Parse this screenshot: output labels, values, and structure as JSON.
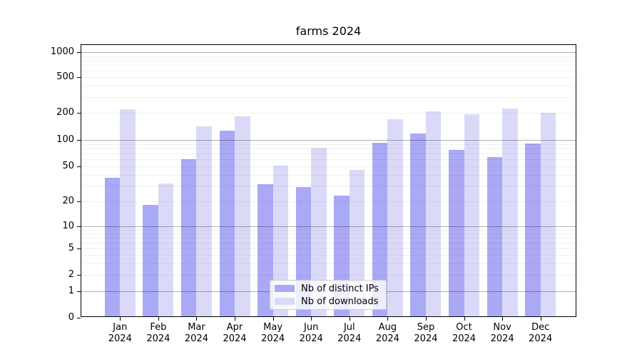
{
  "title": "farms 2024",
  "legend": {
    "items": [
      {
        "label": "Nb of distinct IPs",
        "color": "#a9a9f6"
      },
      {
        "label": "Nb of downloads",
        "color": "#dadaf8"
      }
    ]
  },
  "y_axis": {
    "tick_labels": [
      "0",
      "1",
      "2",
      "5",
      "10",
      "20",
      "50",
      "100",
      "200",
      "500",
      "1000"
    ]
  },
  "x_axis": {
    "months": [
      "Jan",
      "Feb",
      "Mar",
      "Apr",
      "May",
      "Jun",
      "Jul",
      "Aug",
      "Sep",
      "Oct",
      "Nov",
      "Dec"
    ],
    "year": "2024"
  },
  "chart_data": {
    "type": "bar",
    "title": "farms 2024",
    "categories": [
      "Jan 2024",
      "Feb 2024",
      "Mar 2024",
      "Apr 2024",
      "May 2024",
      "Jun 2024",
      "Jul 2024",
      "Aug 2024",
      "Sep 2024",
      "Oct 2024",
      "Nov 2024",
      "Dec 2024"
    ],
    "series": [
      {
        "name": "Nb of distinct IPs",
        "color": "#a9a9f6",
        "values": [
          37,
          18,
          60,
          128,
          31,
          29,
          23,
          92,
          117,
          77,
          64,
          91
        ]
      },
      {
        "name": "Nb of downloads",
        "color": "#dadaf8",
        "values": [
          219,
          32,
          143,
          185,
          51,
          82,
          45,
          170,
          210,
          195,
          223,
          202
        ]
      }
    ],
    "yscale": "symlog",
    "yticks": [
      0,
      1,
      2,
      5,
      10,
      20,
      50,
      100,
      200,
      500,
      1000
    ],
    "ylim": [
      0,
      1300
    ],
    "xlabel": "",
    "ylabel": "",
    "grid": true,
    "grid_over_bars": true,
    "legend_position": "lower center"
  }
}
